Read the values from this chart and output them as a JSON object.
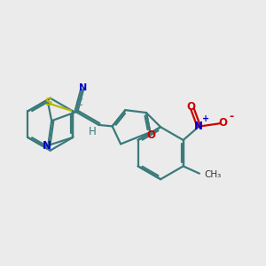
{
  "bg": "#ebebeb",
  "bc": "#3a7a7a",
  "sc": "#b8b800",
  "nc": "#0000cc",
  "oc": "#cc0000",
  "lw": 1.6,
  "figsize": [
    3.0,
    3.0
  ],
  "dpi": 100,
  "xlim": [
    -3.8,
    5.2
  ],
  "ylim": [
    -3.5,
    3.5
  ]
}
